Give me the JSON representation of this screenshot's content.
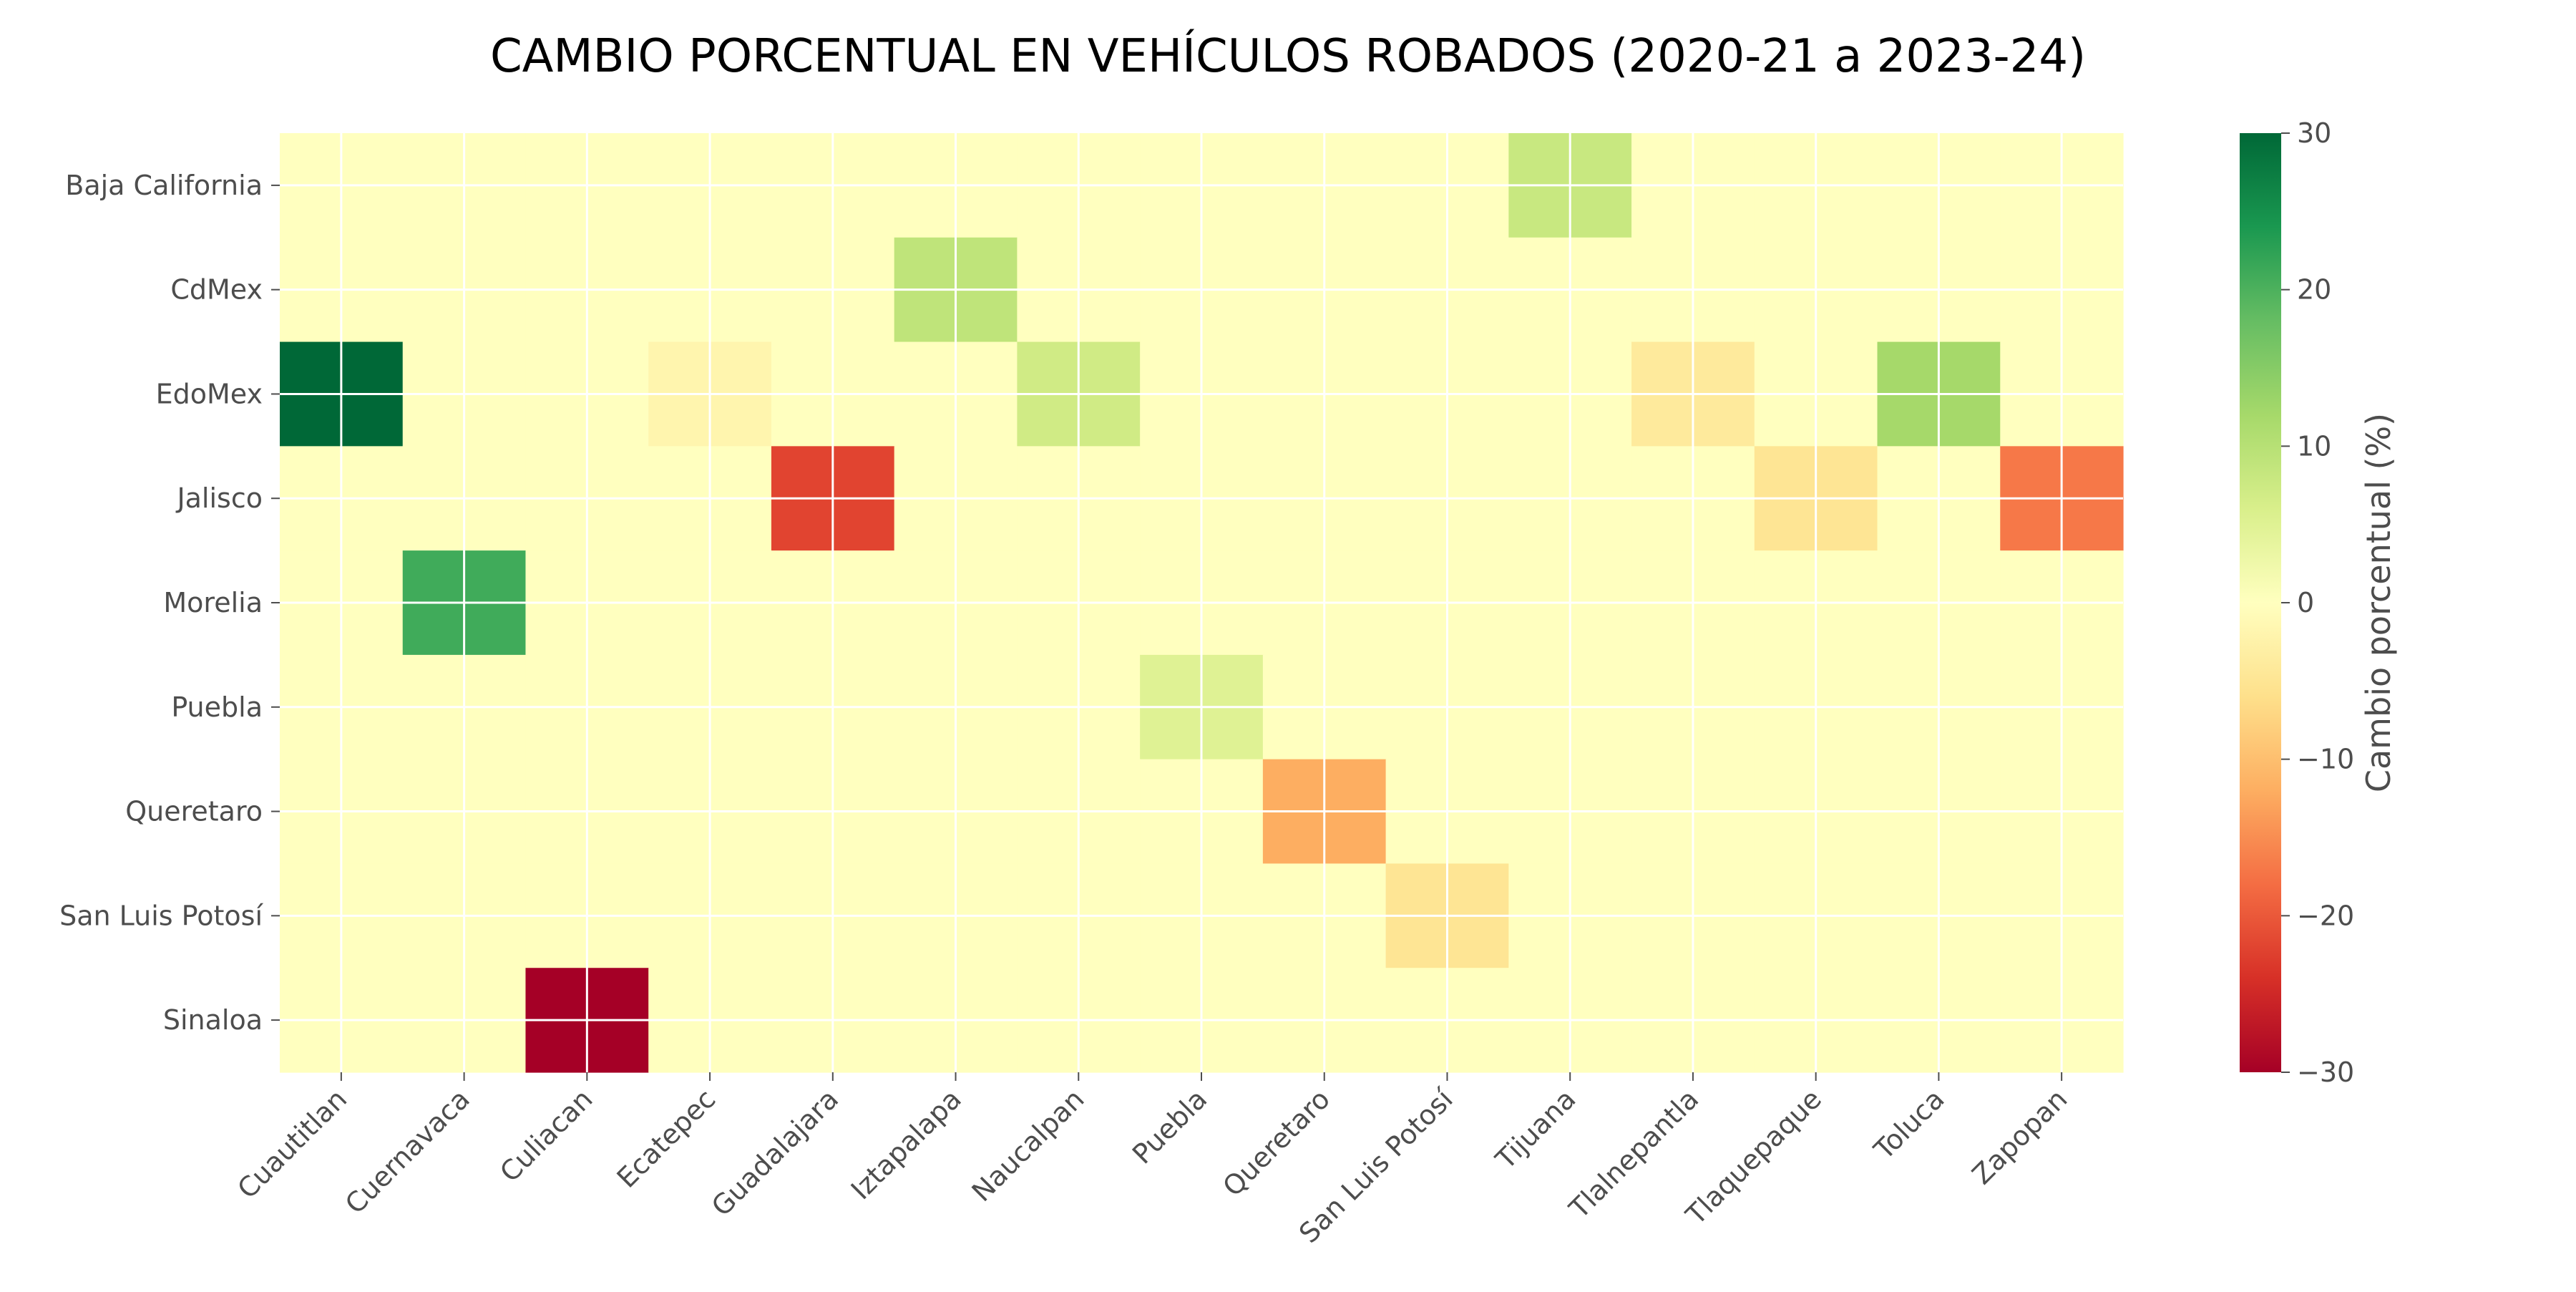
{
  "chart_data": {
    "type": "heatmap",
    "title": "CAMBIO PORCENTUAL EN VEHÍCULOS ROBADOS (2020-21 a 2023-24)",
    "rows": [
      "Baja California",
      "CdMex",
      "EdoMex",
      "Jalisco",
      "Morelia",
      "Puebla",
      "Queretaro",
      "San Luis Potosí",
      "Sinaloa"
    ],
    "columns": [
      "Cuautitlan",
      "Cuernavaca",
      "Culiacan",
      "Ecatepec",
      "Guadalajara",
      "Iztapalapa",
      "Naucalpan",
      "Puebla",
      "Queretaro",
      "San Luis Potosí",
      "Tijuana",
      "Tlalnepantla",
      "Tlaquepaque",
      "Toluca",
      "Zapopan"
    ],
    "cells": [
      {
        "row": "Baja California",
        "column": "Tijuana",
        "value": 8
      },
      {
        "row": "CdMex",
        "column": "Iztapalapa",
        "value": 9
      },
      {
        "row": "EdoMex",
        "column": "Cuautitlan",
        "value": 30
      },
      {
        "row": "EdoMex",
        "column": "Ecatepec",
        "value": -2
      },
      {
        "row": "EdoMex",
        "column": "Naucalpan",
        "value": 7
      },
      {
        "row": "EdoMex",
        "column": "Tlalnepantla",
        "value": -4
      },
      {
        "row": "EdoMex",
        "column": "Toluca",
        "value": 12
      },
      {
        "row": "Jalisco",
        "column": "Guadalajara",
        "value": -22
      },
      {
        "row": "Jalisco",
        "column": "Tlaquepaque",
        "value": -5
      },
      {
        "row": "Jalisco",
        "column": "Zapopan",
        "value": -17
      },
      {
        "row": "Morelia",
        "column": "Cuernavaca",
        "value": 21
      },
      {
        "row": "Puebla",
        "column": "Puebla",
        "value": 5
      },
      {
        "row": "Queretaro",
        "column": "Queretaro",
        "value": -12
      },
      {
        "row": "San Luis Potosí",
        "column": "San Luis Potosí",
        "value": -5
      },
      {
        "row": "Sinaloa",
        "column": "Culiacan",
        "value": -30
      }
    ],
    "default_value": 0,
    "colorbar": {
      "label": "Cambio porcentual (%)",
      "range": [
        -30,
        30
      ],
      "ticks": [
        -30,
        -20,
        -10,
        0,
        10,
        20,
        30
      ],
      "tick_labels": [
        "−30",
        "−20",
        "−10",
        "0",
        "10",
        "20",
        "30"
      ],
      "colormap": "RdYlGn"
    },
    "grid": true
  }
}
